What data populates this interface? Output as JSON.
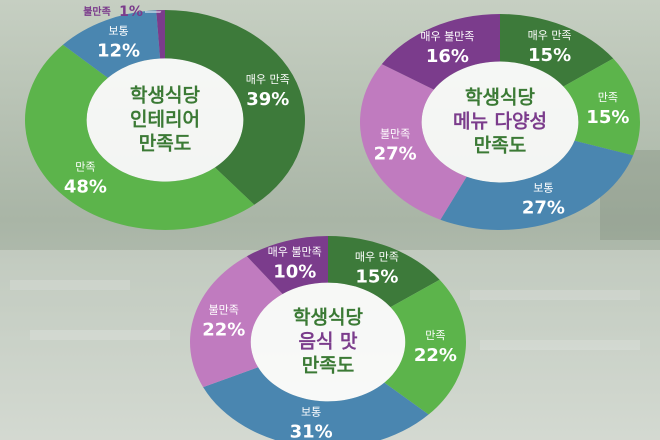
{
  "chart_data": [
    {
      "type": "donut",
      "title_lines": [
        "학생식당",
        "인테리어",
        "만족도"
      ],
      "title_colors": [
        "#3b7a35",
        "#3b7a35",
        "#3b7a35"
      ],
      "categories": [
        "매우 만족",
        "만족",
        "보통",
        "불만족"
      ],
      "values": [
        39,
        48,
        12,
        1
      ],
      "value_labels": [
        "39%",
        "48%",
        "12%",
        "1%"
      ],
      "colors": [
        "#3d7a3a",
        "#5cb44b",
        "#4a86b0",
        "#7b3c8c"
      ]
    },
    {
      "type": "donut",
      "title_lines": [
        "학생식당",
        "메뉴 다양성",
        "만족도"
      ],
      "title_colors": [
        "#3b7a35",
        "#7b3c8c",
        "#3b7a35"
      ],
      "categories": [
        "매우 만족",
        "만족",
        "보통",
        "불만족",
        "매우 불만족"
      ],
      "values": [
        15,
        15,
        27,
        27,
        16
      ],
      "value_labels": [
        "15%",
        "15%",
        "27%",
        "27%",
        "16%"
      ],
      "colors": [
        "#3d7a3a",
        "#5cb44b",
        "#4a86b0",
        "#c07bbf",
        "#7b3c8c"
      ]
    },
    {
      "type": "donut",
      "title_lines": [
        "학생식당",
        "음식 맛",
        "만족도"
      ],
      "title_colors": [
        "#3b7a35",
        "#7b3c8c",
        "#3b7a35"
      ],
      "categories": [
        "매우 만족",
        "만족",
        "보통",
        "불만족",
        "매우 불만족"
      ],
      "values": [
        15,
        22,
        31,
        22,
        10
      ],
      "value_labels": [
        "15%",
        "22%",
        "31%",
        "22%",
        "10%"
      ],
      "colors": [
        "#3d7a3a",
        "#5cb44b",
        "#4a86b0",
        "#c07bbf",
        "#7b3c8c"
      ]
    }
  ]
}
